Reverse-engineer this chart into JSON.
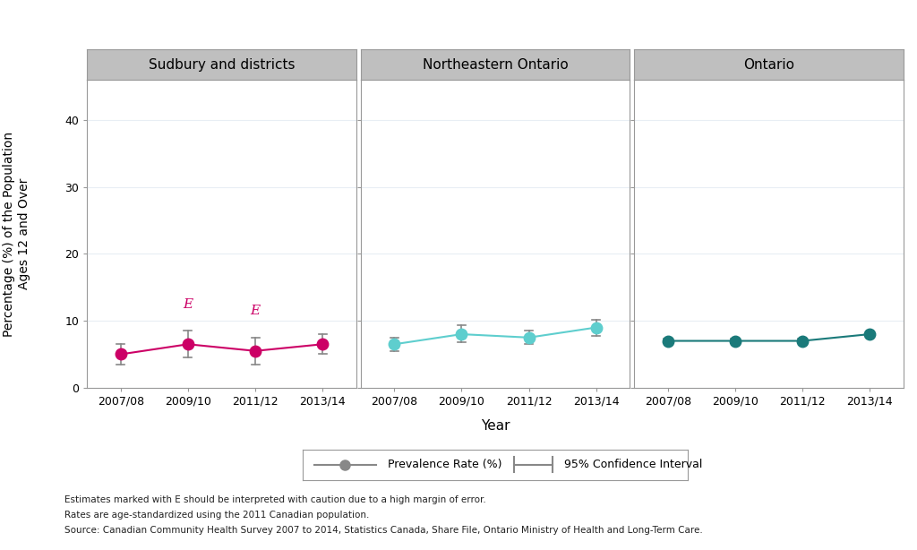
{
  "panels": [
    {
      "title": "Sudbury and districts",
      "color": "#CC0066",
      "years": [
        "2007/08",
        "2009/10",
        "2011/12",
        "2013/14"
      ],
      "values": [
        5.0,
        6.5,
        5.5,
        6.5
      ],
      "ci_low": [
        3.5,
        4.5,
        3.5,
        5.0
      ],
      "ci_high": [
        6.5,
        8.5,
        7.5,
        8.0
      ],
      "e_markers": [
        false,
        true,
        true,
        false
      ]
    },
    {
      "title": "Northeastern Ontario",
      "color": "#5ECECE",
      "years": [
        "2007/08",
        "2009/10",
        "2011/12",
        "2013/14"
      ],
      "values": [
        6.5,
        8.0,
        7.5,
        9.0
      ],
      "ci_low": [
        5.5,
        6.8,
        6.5,
        7.8
      ],
      "ci_high": [
        7.5,
        9.3,
        8.5,
        10.2
      ],
      "e_markers": [
        false,
        false,
        false,
        false
      ]
    },
    {
      "title": "Ontario",
      "color": "#1A7A7A",
      "years": [
        "2007/08",
        "2009/10",
        "2011/12",
        "2013/14"
      ],
      "values": [
        7.0,
        7.0,
        7.0,
        8.0
      ],
      "ci_low": [
        6.7,
        6.7,
        6.7,
        7.7
      ],
      "ci_high": [
        7.3,
        7.3,
        7.3,
        8.3
      ],
      "e_markers": [
        false,
        false,
        false,
        false
      ]
    }
  ],
  "ylabel": "Percentage (%) of the Population\nAges 12 and Over",
  "xlabel": "Year",
  "ylim": [
    0,
    46
  ],
  "yticks": [
    0,
    10,
    20,
    30,
    40
  ],
  "legend_label_rate": "Prevalence Rate (%)",
  "legend_label_ci": "95% Confidence Interval",
  "footnote_lines": [
    "Estimates marked with E should be interpreted with caution due to a high margin of error.",
    "Rates are age-standardized using the 2011 Canadian population.",
    "Source: Canadian Community Health Survey 2007 to 2014, Statistics Canada, Share File, Ontario Ministry of Health and Long-Term Care."
  ],
  "background_color": "#FFFFFF",
  "panel_header_color": "#BFBFBF",
  "panel_header_edge": "#999999",
  "grid_color": "#E8EEF4",
  "e_color": "#CC0066",
  "marker_size": 9,
  "line_width": 1.5,
  "ci_linewidth": 1.2,
  "cap_size": 0.06,
  "spine_color": "#999999"
}
